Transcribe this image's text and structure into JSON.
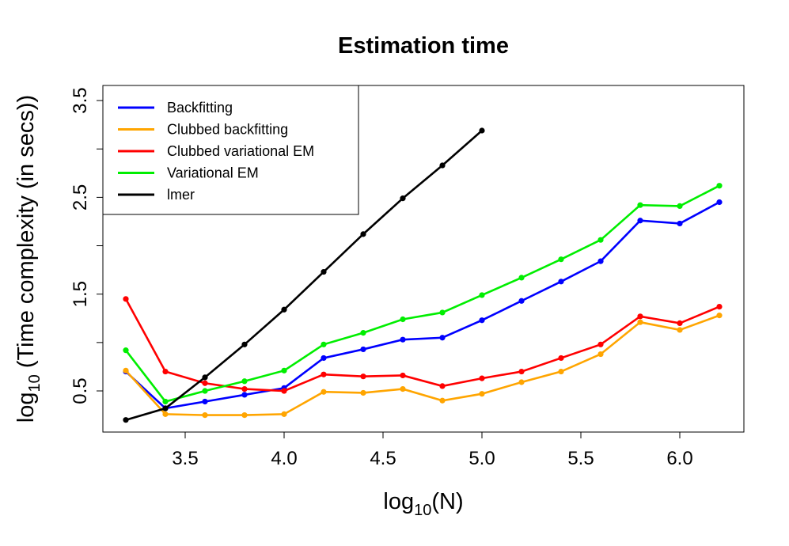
{
  "chart_data": {
    "type": "line",
    "title": "Estimation time",
    "xlabel": "log10(N)",
    "ylabel": "log10 (Time complexity (in secs))",
    "xlim": [
      3.084,
      6.324
    ],
    "ylim": [
      0.075,
      3.656
    ],
    "xticks": [
      3.5,
      4.0,
      4.5,
      5.0,
      5.5,
      6.0
    ],
    "xtick_labels": [
      "3.5",
      "4.0",
      "4.5",
      "5.0",
      "5.5",
      "6.0"
    ],
    "yticks": [
      0.5,
      1.0,
      1.5,
      2.0,
      2.5,
      3.0,
      3.5
    ],
    "ytick_labels": [
      "0.5",
      "",
      "1.5",
      "",
      "2.5",
      "",
      "3.5"
    ],
    "grid": false,
    "legend_position": "top-left",
    "x": [
      3.2,
      3.4,
      3.6,
      3.8,
      4.0,
      4.2,
      4.4,
      4.6,
      4.8,
      5.0,
      5.2,
      5.4,
      5.6,
      5.8,
      6.0,
      6.2
    ],
    "series": [
      {
        "name": "Backfitting",
        "color": "#0000ff",
        "values": [
          0.7,
          0.32,
          0.39,
          0.46,
          0.53,
          0.84,
          0.93,
          1.03,
          1.05,
          1.23,
          1.43,
          1.63,
          1.84,
          2.26,
          2.23,
          2.45
        ]
      },
      {
        "name": "Clubbed backfitting",
        "color": "#ffa500",
        "values": [
          0.71,
          0.26,
          0.25,
          0.25,
          0.26,
          0.49,
          0.48,
          0.52,
          0.4,
          0.47,
          0.59,
          0.7,
          0.88,
          1.21,
          1.13,
          1.28
        ]
      },
      {
        "name": "Clubbed variational EM",
        "color": "#ff0000",
        "values": [
          1.45,
          0.7,
          0.58,
          0.52,
          0.5,
          0.67,
          0.65,
          0.66,
          0.55,
          0.63,
          0.7,
          0.84,
          0.98,
          1.27,
          1.2,
          1.37
        ]
      },
      {
        "name": "Variational EM",
        "color": "#00ee00",
        "values": [
          0.92,
          0.39,
          0.5,
          0.6,
          0.71,
          0.98,
          1.1,
          1.24,
          1.31,
          1.49,
          1.67,
          1.86,
          2.06,
          2.42,
          2.41,
          2.62
        ]
      },
      {
        "name": "lmer",
        "color": "#000000",
        "values": [
          0.2,
          0.32,
          0.64,
          0.98,
          1.34,
          1.73,
          2.12,
          2.49,
          2.83,
          3.19,
          null,
          null,
          null,
          null,
          null,
          null
        ]
      }
    ]
  }
}
